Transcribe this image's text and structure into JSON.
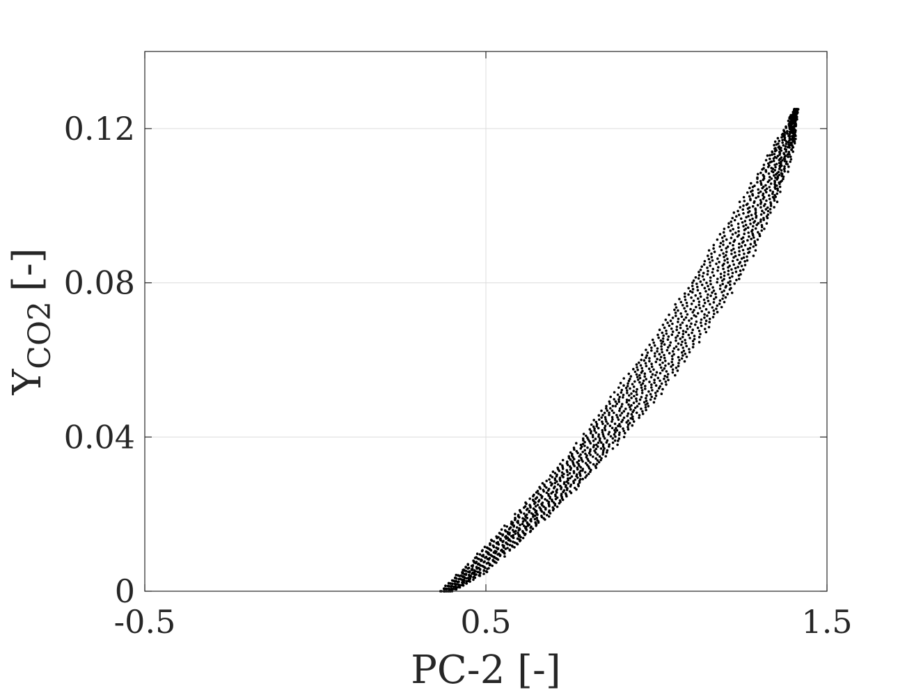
{
  "chart_data": {
    "type": "scatter",
    "xlabel": "PC-2 [-]",
    "ylabel": {
      "main": "Y",
      "subscript": "CO2",
      "suffix": "[-]"
    },
    "xlim": [
      -0.5,
      1.5
    ],
    "ylim": [
      0,
      0.14
    ],
    "x_ticks": [
      -0.5,
      0.5,
      1.5
    ],
    "x_tick_labels": [
      "-0.5",
      "0.5",
      "1.5"
    ],
    "y_ticks": [
      0,
      0.04,
      0.08,
      0.12
    ],
    "y_tick_labels": [
      "0",
      "0.04",
      "0.08",
      "0.12"
    ],
    "grid": true,
    "marker_color": "#000000",
    "series": [
      {
        "description_points": "Dense band of points forming a thin closed loop from (0.37, 0) to (1.41, 0.125); upper edge follows points below",
        "upper_edge": [
          [
            0.37,
            0.0
          ],
          [
            0.45,
            0.007
          ],
          [
            0.55,
            0.016
          ],
          [
            0.65,
            0.026
          ],
          [
            0.75,
            0.036
          ],
          [
            0.85,
            0.048
          ],
          [
            0.95,
            0.06
          ],
          [
            1.05,
            0.073
          ],
          [
            1.15,
            0.087
          ],
          [
            1.25,
            0.101
          ],
          [
            1.33,
            0.113
          ],
          [
            1.39,
            0.122
          ],
          [
            1.41,
            0.125
          ]
        ],
        "lower_edge": [
          [
            0.4,
            0.0
          ],
          [
            0.5,
            0.005
          ],
          [
            0.6,
            0.013
          ],
          [
            0.7,
            0.021
          ],
          [
            0.8,
            0.03
          ],
          [
            0.9,
            0.04
          ],
          [
            1.0,
            0.05
          ],
          [
            1.1,
            0.062
          ],
          [
            1.2,
            0.075
          ],
          [
            1.28,
            0.087
          ],
          [
            1.35,
            0.101
          ],
          [
            1.4,
            0.114
          ],
          [
            1.41,
            0.125
          ]
        ]
      }
    ]
  }
}
